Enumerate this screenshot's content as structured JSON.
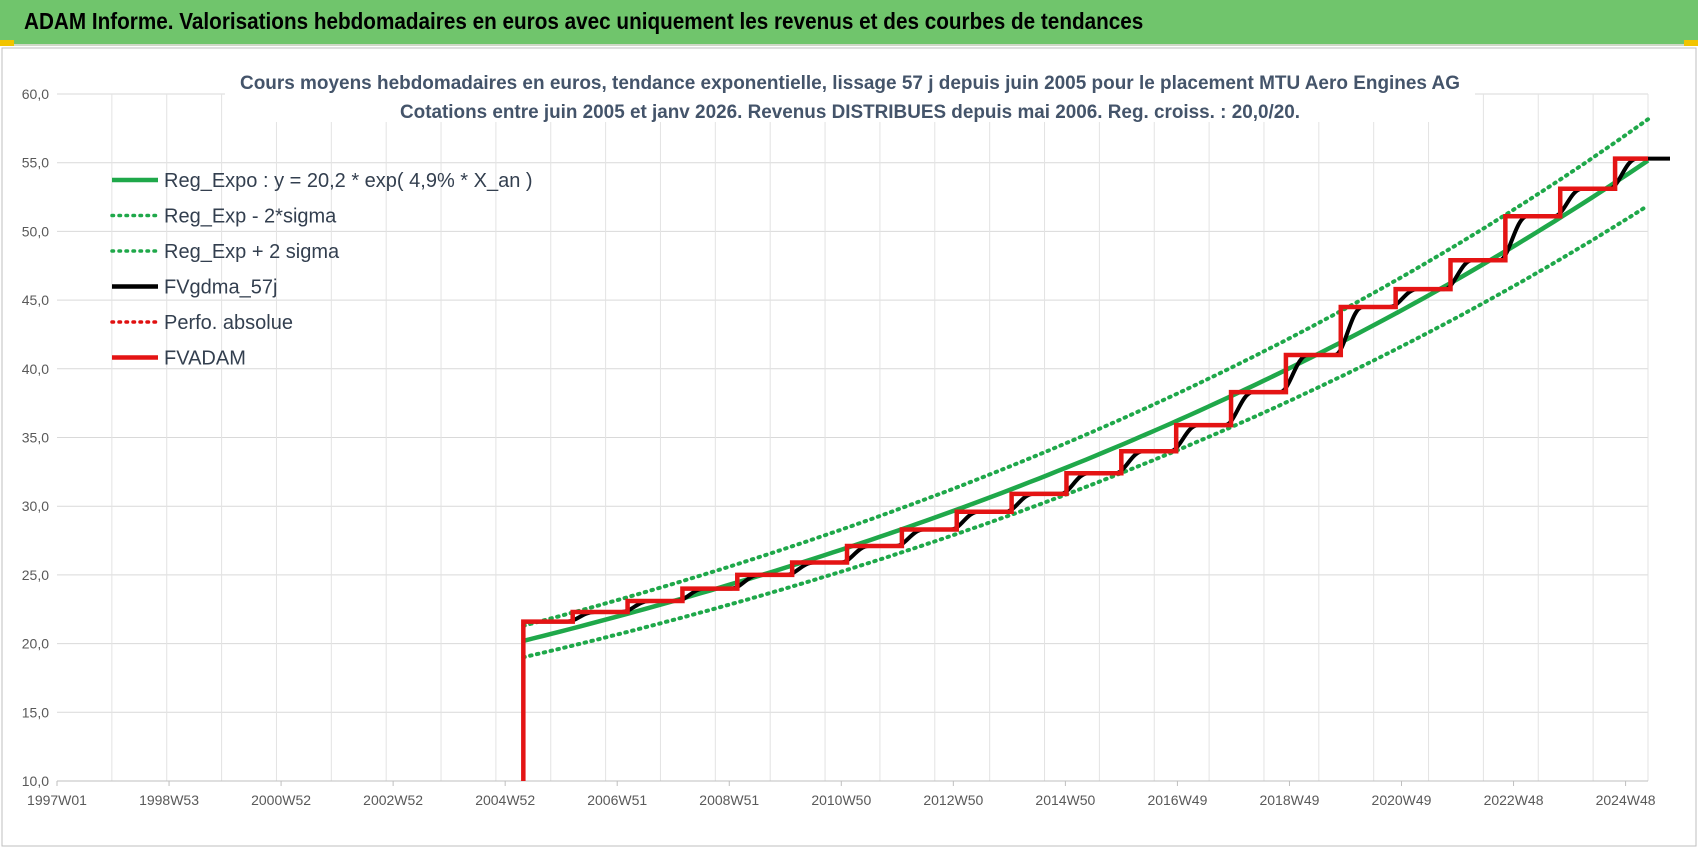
{
  "header": {
    "title": "ADAM Informe. Valorisations hebdomadaires en euros avec uniquement les revenus et des courbes de tendances"
  },
  "chart_data": {
    "type": "line",
    "title": "Cours moyens hebdomadaires en euros, tendance exponentielle, lissage 57 j depuis juin 2005 pour le placement MTU Aero Engines AG",
    "subtitle": "Cotations entre juin 2005 et janv 2026. Revenus DISTRIBUES depuis mai 2006. Reg. croiss. : 20,0/20.",
    "xlabel": "",
    "ylabel": "",
    "x_ticks": [
      "1997W01",
      "1998W53",
      "2000W52",
      "2002W52",
      "2004W52",
      "2006W51",
      "2008W51",
      "2010W50",
      "2012W50",
      "2014W50",
      "2016W49",
      "2018W49",
      "2020W49",
      "2022W48",
      "2024W48"
    ],
    "xlim": [
      1997.0,
      2026.0
    ],
    "ylim": [
      10.0,
      60.0
    ],
    "y_ticks": [
      "10,0",
      "15,0",
      "20,0",
      "25,0",
      "30,0",
      "35,0",
      "40,0",
      "45,0",
      "50,0",
      "55,0",
      "60,0"
    ],
    "grid": true,
    "legend_position": "top-left",
    "regression": {
      "a": 20.2,
      "rate": 0.049,
      "start": 2005.5,
      "end": 2026.0
    },
    "series": [
      {
        "name": "Reg_Expo : y = 20,2 * exp( 4,9% *  X_an )",
        "color": "#1fa84a",
        "style": "solid",
        "x": [
          2005.5,
          2010.5,
          2015.5,
          2020.5,
          2026.0
        ],
        "y": [
          20.2,
          25.9,
          33.1,
          42.5,
          55.4
        ]
      },
      {
        "name": "Reg_Exp - 2*sigma",
        "color": "#1fa84a",
        "style": "dotted",
        "x": [
          2005.5,
          2010.5,
          2015.5,
          2020.5,
          2026.0
        ],
        "y": [
          19.0,
          24.4,
          31.2,
          40.0,
          52.3
        ]
      },
      {
        "name": "Reg_Exp + 2 sigma",
        "color": "#1fa84a",
        "style": "dotted",
        "x": [
          2005.5,
          2010.5,
          2015.5,
          2020.5,
          2026.0
        ],
        "y": [
          21.3,
          27.3,
          35.0,
          44.9,
          58.5
        ]
      },
      {
        "name": "FVgdma_57j",
        "color": "#000000",
        "style": "solid",
        "x": [
          2005.5,
          2026.0
        ],
        "y": [
          21.6,
          55.4
        ]
      },
      {
        "name": "Perfo. absolue",
        "color": "#e01010",
        "style": "dotted",
        "x": [],
        "y": []
      },
      {
        "name": "FVADAM",
        "color": "#e41414",
        "style": "solid",
        "x": [
          2005.5,
          2005.5,
          2006.4,
          2007.4,
          2008.4,
          2009.4,
          2010.4,
          2011.4,
          2012.4,
          2013.4,
          2014.4,
          2015.4,
          2016.4,
          2017.4,
          2018.4,
          2019.4,
          2020.4,
          2021.4,
          2022.4,
          2023.4,
          2024.4,
          2025.4,
          2026.0
        ],
        "y": [
          10.0,
          21.6,
          22.3,
          23.1,
          24.0,
          25.0,
          25.9,
          27.1,
          28.3,
          29.6,
          30.9,
          32.4,
          34.0,
          35.9,
          38.3,
          41.0,
          44.5,
          45.8,
          47.9,
          51.1,
          53.1,
          55.3,
          55.3
        ]
      }
    ]
  }
}
